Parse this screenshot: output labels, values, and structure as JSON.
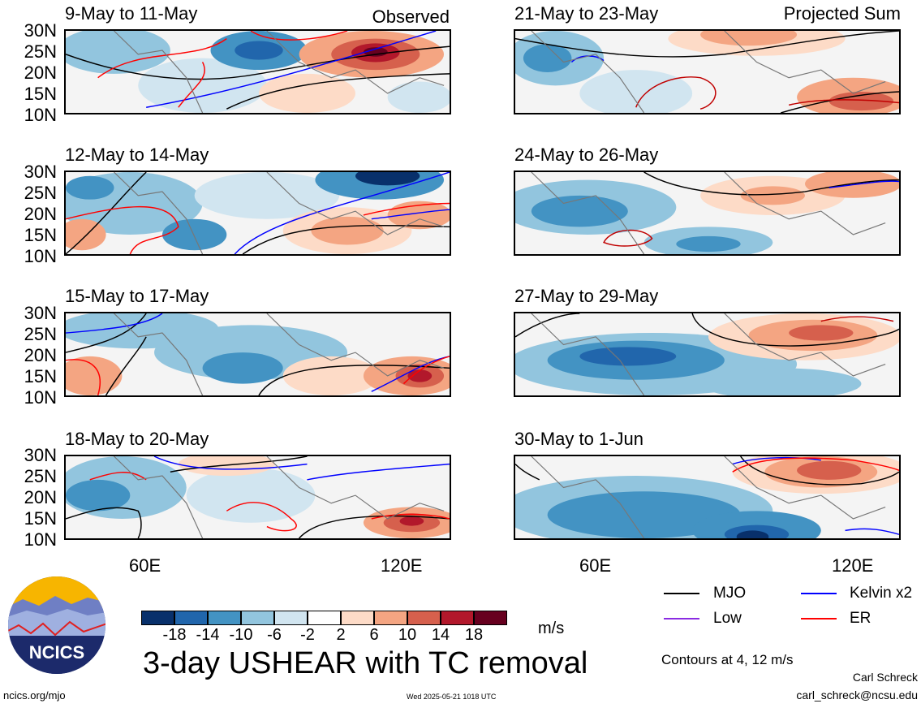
{
  "panels": [
    {
      "title": "9-May to 11-May",
      "label": "Observed"
    },
    {
      "title": "21-May to 23-May",
      "label": "Projected Sum"
    },
    {
      "title": "12-May to 14-May",
      "label": ""
    },
    {
      "title": "24-May to 26-May",
      "label": ""
    },
    {
      "title": "15-May to 17-May",
      "label": ""
    },
    {
      "title": "27-May to 29-May",
      "label": ""
    },
    {
      "title": "18-May to 20-May",
      "label": ""
    },
    {
      "title": "30-May to 1-Jun",
      "label": ""
    }
  ],
  "y_ticks": [
    "30N",
    "25N",
    "20N",
    "15N",
    "10N"
  ],
  "x_ticks": [
    "60E",
    "120E"
  ],
  "colorbar": {
    "labels": [
      "-18",
      "-14",
      "-10",
      "-6",
      "-2",
      "2",
      "6",
      "10",
      "14",
      "18"
    ],
    "unit": "m/s",
    "colors": [
      "#08306b",
      "#2166ac",
      "#4393c3",
      "#92c5de",
      "#d1e5f0",
      "#ffffff",
      "#fddbc7",
      "#f4a582",
      "#d6604d",
      "#b2182b",
      "#67001f"
    ]
  },
  "main_title": "3-day USHEAR with TC removal",
  "legend": {
    "mjo": "MJO",
    "kelvin": "Kelvin x2",
    "low": "Low",
    "er": "ER",
    "colors": {
      "mjo": "#000000",
      "kelvin": "#0000ff",
      "low": "#8a2be2",
      "er": "#ff0000"
    }
  },
  "contours_note": "Contours at 4, 12 m/s",
  "credit": {
    "name": "Carl Schreck",
    "email": "carl_schreck@ncsu.edu"
  },
  "site": "ncics.org/mjo",
  "timestamp": "Wed 2025-05-21 1018 UTC",
  "logo_text": "NCICS"
}
